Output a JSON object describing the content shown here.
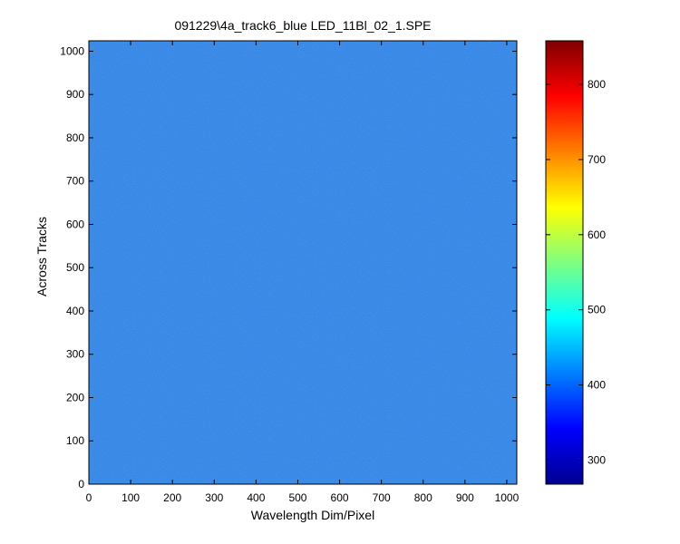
{
  "figure": {
    "background": "#ffffff"
  },
  "chart_data": {
    "type": "heatmap",
    "title": "091229\\4a_track6_blue LED_11Bl_02_1.SPE",
    "xlabel": "Wavelength Dim/Pixel",
    "ylabel": "Across Tracks",
    "xlim": [
      0,
      1024
    ],
    "ylim": [
      0,
      1024
    ],
    "x_ticks": [
      0,
      100,
      200,
      300,
      400,
      500,
      600,
      700,
      800,
      900,
      1000
    ],
    "y_ticks": [
      0,
      100,
      200,
      300,
      400,
      500,
      600,
      700,
      800,
      900,
      1000
    ],
    "colormap": "jet",
    "color_range": [
      268,
      858
    ],
    "colorbar_ticks": [
      300,
      400,
      500,
      600,
      700,
      800
    ],
    "field": {
      "description": "nearly uniform intensity with fine pixel noise",
      "mean_value": 400,
      "noise_range": [
        385,
        415
      ]
    },
    "grid": false
  }
}
